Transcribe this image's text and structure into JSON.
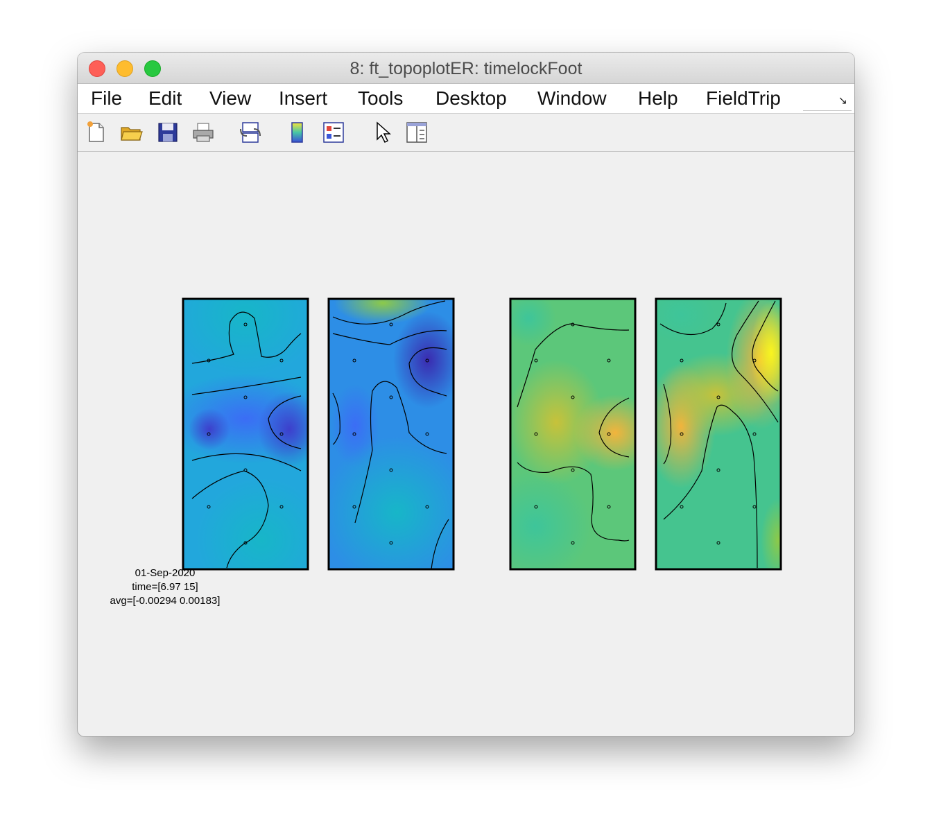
{
  "window": {
    "title": "8: ft_topoplotER: timelockFoot"
  },
  "menubar": {
    "items": [
      "File",
      "Edit",
      "View",
      "Insert",
      "Tools",
      "Desktop",
      "Window",
      "Help",
      "FieldTrip"
    ],
    "overflow_icon": "chevron-expand-icon"
  },
  "toolbar": {
    "buttons": [
      {
        "name": "new-figure-button",
        "icon": "new-document-icon"
      },
      {
        "name": "open-file-button",
        "icon": "folder-open-icon"
      },
      {
        "name": "save-figure-button",
        "icon": "floppy-disk-icon"
      },
      {
        "name": "print-figure-button",
        "icon": "printer-icon"
      },
      {
        "name": "link-plot-button",
        "icon": "link-plot-icon"
      },
      {
        "name": "insert-colorbar-button",
        "icon": "colorbar-icon"
      },
      {
        "name": "insert-legend-button",
        "icon": "legend-icon"
      },
      {
        "name": "edit-plot-button",
        "icon": "pointer-arrow-icon"
      },
      {
        "name": "show-plot-tools-button",
        "icon": "plot-tools-icon"
      }
    ]
  },
  "annotation": {
    "date": "01-Sep-2020",
    "time": "time=[6.97 15]",
    "avg": "avg=[-0.00294 0.00183]"
  },
  "colors": {
    "colormap": "parula",
    "frame": "#000000",
    "contour": "#000000"
  },
  "chart_data": {
    "type": "heatmap",
    "colormap": "parula",
    "panels": [
      {
        "name": "left-foot-outer",
        "electrodes": 10,
        "tone": "blue"
      },
      {
        "name": "left-foot-inner",
        "electrodes": 10,
        "tone": "blue"
      },
      {
        "name": "right-foot-inner",
        "electrodes": 10,
        "tone": "green-yellow"
      },
      {
        "name": "right-foot-outer",
        "electrodes": 10,
        "tone": "green-yellow"
      }
    ]
  }
}
